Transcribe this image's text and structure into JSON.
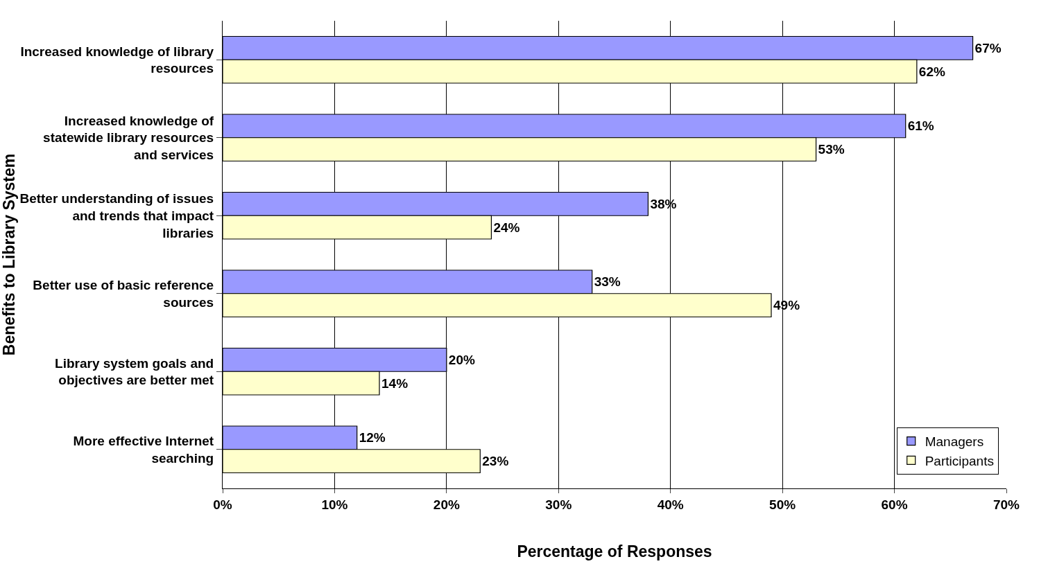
{
  "chart_data": {
    "type": "bar",
    "orientation": "horizontal",
    "xlabel": "Percentage of Responses",
    "ylabel": "Benefits to Library System",
    "categories": [
      "Increased knowledge of library resources",
      "Increased knowledge of statewide library resources and services",
      "Better understanding of issues and trends that impact libraries",
      "Better use of basic reference sources",
      "Library system goals and objectives are better met",
      "More effective Internet searching"
    ],
    "series": [
      {
        "name": "Managers",
        "color": "#9999ff",
        "values": [
          67,
          61,
          38,
          33,
          20,
          12
        ],
        "value_labels": [
          "67%",
          "61%",
          "38%",
          "33%",
          "20%",
          "12%"
        ]
      },
      {
        "name": "Participants",
        "color": "#ffffcc",
        "values": [
          62,
          53,
          24,
          49,
          14,
          23
        ],
        "value_labels": [
          "62%",
          "53%",
          "24%",
          "49%",
          "14%",
          "23%"
        ]
      }
    ],
    "xlim": [
      0,
      70
    ],
    "xticks": [
      {
        "value": 0,
        "label": "0%"
      },
      {
        "value": 10,
        "label": "10%"
      },
      {
        "value": 20,
        "label": "20%"
      },
      {
        "value": 30,
        "label": "30%"
      },
      {
        "value": 40,
        "label": "40%"
      },
      {
        "value": 50,
        "label": "50%"
      },
      {
        "value": 60,
        "label": "60%"
      },
      {
        "value": 70,
        "label": "70%"
      }
    ],
    "grid": "x",
    "legend": "bottom right"
  }
}
